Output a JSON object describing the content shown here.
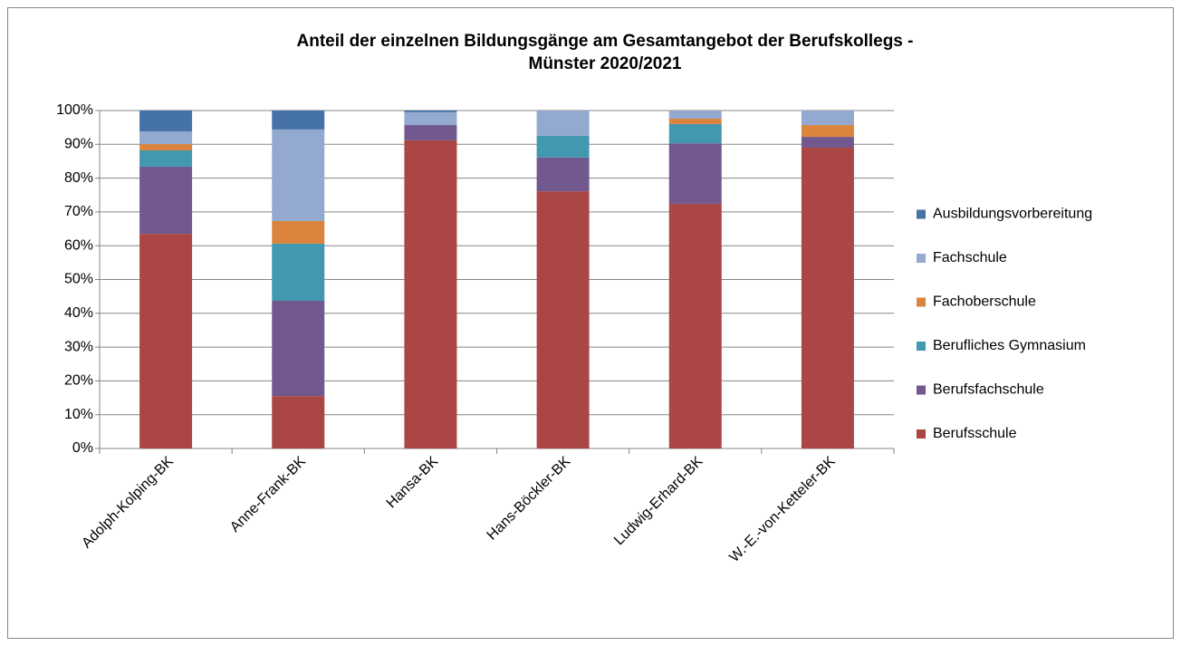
{
  "chart_data": {
    "type": "stacked_bar",
    "title": [
      "Anteil der einzelnen Bildungsgänge am Gesamtangebot der Berufskollegs -",
      "Münster 2020/2021"
    ],
    "categories": [
      "Adolph-Kolping-BK",
      "Anne-Frank-BK",
      "Hansa-BK",
      "Hans-Böckler-BK",
      "Ludwig-Erhard-BK",
      "W.-E.-von-Ketteler-BK"
    ],
    "series": [
      {
        "name": "Berufsschule",
        "color": "#AA4643",
        "values": [
          63.5,
          15.5,
          91.2,
          76.1,
          72.4,
          89.0
        ]
      },
      {
        "name": "Berufsfachschule",
        "color": "#71588F",
        "values": [
          19.9,
          28.2,
          4.5,
          10.0,
          17.9,
          3.2
        ]
      },
      {
        "name": "Berufliches Gymnasium",
        "color": "#4198AF",
        "values": [
          4.8,
          16.9,
          0,
          6.4,
          5.7,
          0
        ]
      },
      {
        "name": "Fachoberschule",
        "color": "#DB843D",
        "values": [
          1.9,
          6.7,
          0,
          0,
          1.6,
          3.5
        ]
      },
      {
        "name": "Fachschule",
        "color": "#93A9CF",
        "values": [
          3.7,
          27.1,
          3.8,
          7.5,
          2.4,
          4.3
        ]
      },
      {
        "name": "Ausbildungsvorbereitung",
        "color": "#4572A7",
        "values": [
          6.2,
          5.6,
          0.5,
          0,
          0,
          0
        ]
      }
    ],
    "ylim": [
      0,
      100
    ],
    "yticks": [
      {
        "value": 0,
        "label": "0%"
      },
      {
        "value": 10,
        "label": "10%"
      },
      {
        "value": 20,
        "label": "20%"
      },
      {
        "value": 30,
        "label": "30%"
      },
      {
        "value": 40,
        "label": "40%"
      },
      {
        "value": 50,
        "label": "50%"
      },
      {
        "value": 60,
        "label": "60%"
      },
      {
        "value": 70,
        "label": "70%"
      },
      {
        "value": 80,
        "label": "80%"
      },
      {
        "value": 90,
        "label": "90%"
      },
      {
        "value": 100,
        "label": "100%"
      }
    ],
    "grid": true,
    "legend": "right"
  }
}
